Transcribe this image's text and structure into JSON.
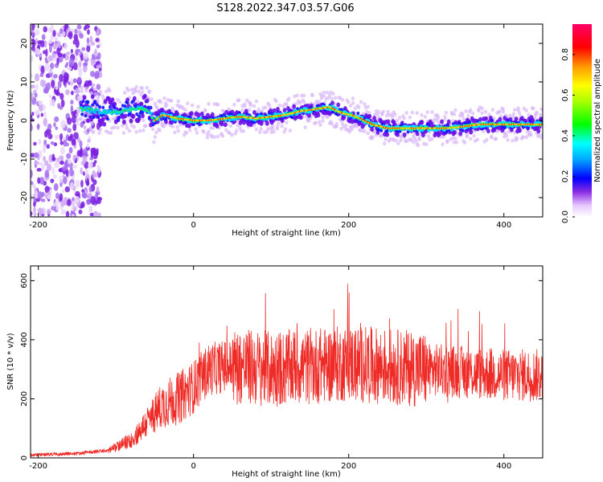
{
  "figure_title": "S128.2022.347.03.57.G06",
  "chart_data": [
    {
      "type": "heatmap",
      "xlabel": "Height of straight line (km)",
      "ylabel": "Frequency (Hz)",
      "xlim": [
        -210,
        450
      ],
      "ylim": [
        -25,
        25
      ],
      "xticks": [
        -200,
        0,
        200,
        400
      ],
      "yticks": [
        -20,
        -10,
        0,
        10,
        20
      ],
      "colorbar": {
        "label": "Normalized spectral amplitude",
        "range": [
          0.0,
          0.95
        ],
        "ticks": [
          0.0,
          0.2,
          0.4,
          0.6,
          0.8
        ]
      },
      "ridge": {
        "x": [
          -145,
          -120,
          -100,
          -80,
          -60,
          -50,
          -40,
          -30,
          -20,
          0,
          20,
          40,
          60,
          80,
          100,
          120,
          140,
          160,
          175,
          190,
          210,
          230,
          250,
          270,
          300,
          330,
          350,
          370,
          400,
          430,
          450
        ],
        "y": [
          3,
          2.5,
          2,
          3,
          3,
          0,
          1.5,
          1,
          0.5,
          0,
          0,
          0.5,
          1,
          0.5,
          1,
          1.5,
          2.5,
          3,
          3.5,
          2,
          1,
          -1,
          -2,
          -2,
          -2,
          -2,
          -1.5,
          -1,
          -1,
          -1,
          -1
        ]
      },
      "noise_region_x": [
        -210,
        -120
      ]
    },
    {
      "type": "line",
      "xlabel": "Height of straight line (km)",
      "ylabel": "SNR (10 * v/v)",
      "xlim": [
        -210,
        450
      ],
      "ylim": [
        0,
        650
      ],
      "xticks": [
        -200,
        0,
        200,
        400
      ],
      "yticks": [
        0,
        200,
        400,
        600
      ],
      "color": "#ee2b26",
      "envelope": {
        "x": [
          -210,
          -150,
          -110,
          -80,
          -60,
          -40,
          -20,
          0,
          20,
          40,
          60,
          100,
          150,
          200,
          250,
          300,
          350,
          400,
          450
        ],
        "y": [
          10,
          15,
          25,
          60,
          120,
          180,
          200,
          240,
          300,
          310,
          310,
          300,
          310,
          320,
          310,
          300,
          290,
          280,
          280
        ]
      },
      "noise_amplitude": 90
    }
  ]
}
